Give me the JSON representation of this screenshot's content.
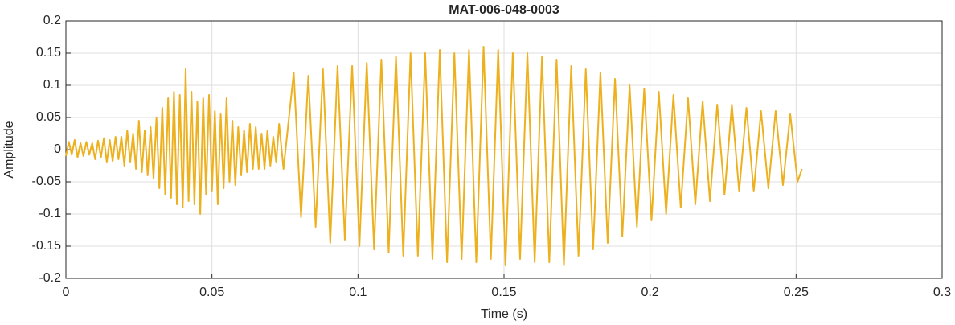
{
  "chart_data": {
    "type": "line",
    "title": "MAT-006-048-0003",
    "x_label": "Time (s)",
    "y_label": "Amplitude",
    "xlim": [
      0,
      0.3
    ],
    "xticks": [
      0,
      0.05,
      0.1,
      0.15,
      0.2,
      0.25,
      0.3
    ],
    "ylim": [
      -0.2,
      0.2
    ],
    "yticks": [
      -0.2,
      -0.15,
      -0.1,
      -0.05,
      0,
      0.05,
      0.1,
      0.15,
      0.2
    ],
    "grid": true,
    "series": [
      {
        "color": "#EDB120",
        "x": [
          0,
          0.001,
          0.002,
          0.003,
          0.004,
          0.005,
          0.006,
          0.007,
          0.008,
          0.009,
          0.01,
          0.011,
          0.012,
          0.013,
          0.014,
          0.015,
          0.016,
          0.017,
          0.018,
          0.019,
          0.02,
          0.021,
          0.022,
          0.023,
          0.024,
          0.025,
          0.026,
          0.027,
          0.028,
          0.029,
          0.03,
          0.031,
          0.032,
          0.033,
          0.034,
          0.035,
          0.036,
          0.037,
          0.038,
          0.039,
          0.04,
          0.041,
          0.042,
          0.043,
          0.044,
          0.045,
          0.046,
          0.047,
          0.048,
          0.049,
          0.05,
          0.051,
          0.052,
          0.053,
          0.054,
          0.055,
          0.056,
          0.057,
          0.058,
          0.059,
          0.06,
          0.061,
          0.062,
          0.063,
          0.064,
          0.065,
          0.066,
          0.067,
          0.068,
          0.069,
          0.07,
          0.071,
          0.072,
          0.073,
          0.0745,
          0.078,
          0.0805,
          0.083,
          0.0855,
          0.088,
          0.0905,
          0.093,
          0.0955,
          0.098,
          0.1005,
          0.103,
          0.1055,
          0.108,
          0.1105,
          0.113,
          0.1155,
          0.118,
          0.1205,
          0.123,
          0.1255,
          0.128,
          0.1305,
          0.133,
          0.1355,
          0.138,
          0.1405,
          0.143,
          0.1455,
          0.148,
          0.1505,
          0.153,
          0.1555,
          0.158,
          0.1605,
          0.163,
          0.1655,
          0.168,
          0.1705,
          0.173,
          0.1755,
          0.178,
          0.1805,
          0.183,
          0.1855,
          0.188,
          0.1905,
          0.193,
          0.1955,
          0.198,
          0.2005,
          0.203,
          0.2055,
          0.208,
          0.2105,
          0.213,
          0.2155,
          0.218,
          0.2205,
          0.223,
          0.2255,
          0.228,
          0.2305,
          0.233,
          0.2355,
          0.238,
          0.2405,
          0.243,
          0.2455,
          0.248,
          0.2505,
          0.252
        ],
        "values": [
          -0.01,
          0.012,
          -0.008,
          0.015,
          -0.012,
          0.01,
          -0.01,
          0.012,
          -0.008,
          0.01,
          -0.015,
          0.014,
          -0.012,
          0.018,
          -0.02,
          0.015,
          -0.018,
          0.02,
          -0.015,
          0.02,
          -0.025,
          0.03,
          -0.02,
          0.025,
          -0.03,
          0.045,
          -0.035,
          0.03,
          -0.04,
          0.035,
          -0.045,
          0.05,
          -0.06,
          0.065,
          -0.07,
          0.08,
          -0.075,
          0.09,
          -0.085,
          0.085,
          -0.09,
          0.125,
          -0.08,
          0.09,
          -0.085,
          0.075,
          -0.1,
          0.08,
          -0.07,
          0.085,
          -0.065,
          0.06,
          -0.085,
          0.055,
          -0.06,
          0.08,
          -0.05,
          0.045,
          -0.055,
          0.035,
          -0.04,
          0.03,
          -0.035,
          0.04,
          -0.03,
          0.035,
          -0.03,
          0.025,
          -0.03,
          0.03,
          -0.025,
          0.02,
          -0.02,
          0.04,
          -0.03,
          0.12,
          -0.105,
          0.115,
          -0.12,
          0.125,
          -0.145,
          0.13,
          -0.14,
          0.13,
          -0.15,
          0.135,
          -0.155,
          0.14,
          -0.16,
          0.145,
          -0.165,
          0.15,
          -0.165,
          0.15,
          -0.17,
          0.155,
          -0.175,
          0.15,
          -0.17,
          0.155,
          -0.175,
          0.16,
          -0.17,
          0.155,
          -0.18,
          0.15,
          -0.17,
          0.15,
          -0.175,
          0.145,
          -0.175,
          0.14,
          -0.18,
          0.13,
          -0.165,
          0.125,
          -0.155,
          0.12,
          -0.145,
          0.11,
          -0.135,
          0.1,
          -0.12,
          0.095,
          -0.11,
          0.09,
          -0.1,
          0.085,
          -0.09,
          0.08,
          -0.085,
          0.075,
          -0.08,
          0.07,
          -0.07,
          0.07,
          -0.065,
          0.065,
          -0.065,
          0.06,
          -0.06,
          0.06,
          -0.055,
          0.055,
          -0.05,
          -0.03
        ]
      }
    ]
  }
}
